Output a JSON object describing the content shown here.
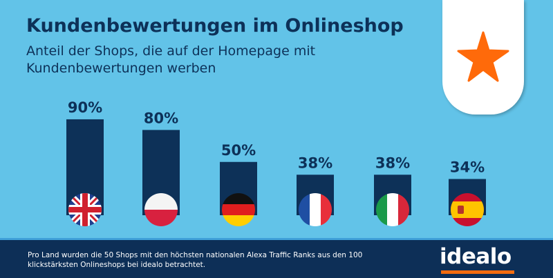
{
  "title": "Kundenbewertungen im Onlineshop",
  "subtitle": "Anteil der Shops, die auf der Homepage mit Kundenbewertungen werben",
  "footer_note": "Pro Land wurden die 50 Shops mit den höchsten nationalen Alexa Traffic Ranks aus den 100 klickstärksten Onlineshops bei idealo betrachtet.",
  "logo": "idealo",
  "colors": {
    "bar": "#0d3158",
    "background": "#62c3e8",
    "star": "#ff6a0a",
    "logo_accent": "#f36c0f"
  },
  "chart_data": {
    "type": "bar",
    "title": "Kundenbewertungen im Onlineshop",
    "categories": [
      "Großbritannien",
      "Polen",
      "Deutschland",
      "Frankreich",
      "Italien",
      "Spanien"
    ],
    "flags": [
      "uk",
      "pl",
      "de",
      "fr",
      "it",
      "es"
    ],
    "values": [
      90,
      80,
      50,
      38,
      38,
      34
    ],
    "labels": [
      "90%",
      "80%",
      "50%",
      "38%",
      "38%",
      "34%"
    ],
    "ylim": [
      0,
      100
    ],
    "unit": "%"
  }
}
